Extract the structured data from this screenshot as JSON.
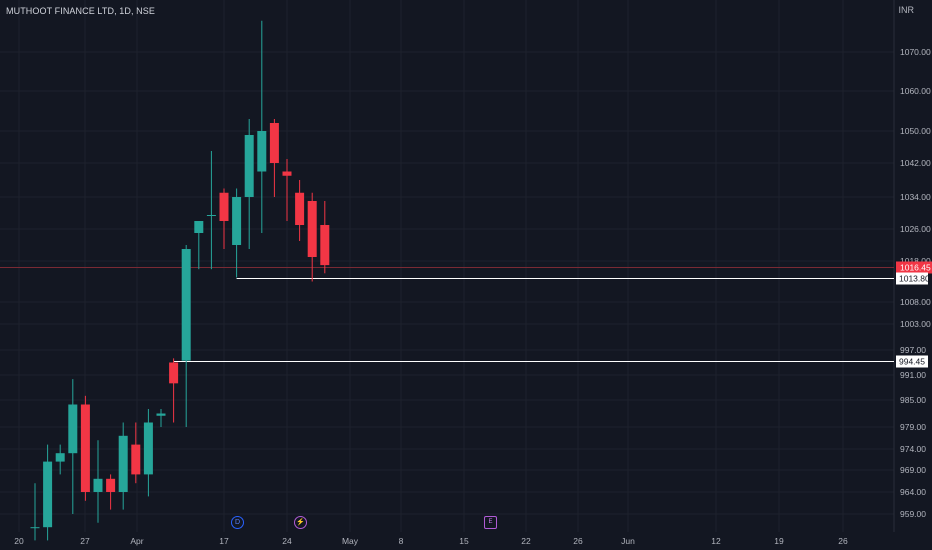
{
  "header": {
    "symbol_line": "MUTHOOT FINANCE LTD, 1D, NSE",
    "currency": "INR"
  },
  "events": {
    "dividend_label": "D",
    "split_label": "⚡",
    "earnings_label": "E"
  },
  "colors": {
    "background": "#131722",
    "up": "#26a69a",
    "down": "#f23645",
    "grid": "#1e222d",
    "axis_text": "#b2b5be",
    "last_price_line": "#7a2a34",
    "level_line": "#ffffff"
  },
  "chart_data": {
    "type": "candlestick",
    "title": "MUTHOOT FINANCE LTD, 1D, NSE",
    "currency": "INR",
    "y_tick_labels": [
      "1070.00",
      "1060.00",
      "1050.00",
      "1042.00",
      "1034.00",
      "1026.00",
      "1018.00",
      "1008.00",
      "1003.00",
      "997.00",
      "991.00",
      "985.00",
      "979.00",
      "974.00",
      "969.00",
      "964.00",
      "959.00"
    ],
    "x_tick_labels": [
      "20",
      "27",
      "Apr",
      "17",
      "24",
      "May",
      "8",
      "15",
      "22",
      "26",
      "Jun",
      "12",
      "19",
      "26"
    ],
    "candles": [
      {
        "o": 956,
        "h": 966,
        "l": 953,
        "c": 956
      },
      {
        "o": 956,
        "h": 975,
        "l": 953,
        "c": 971
      },
      {
        "o": 971,
        "h": 975,
        "l": 968,
        "c": 973
      },
      {
        "o": 973,
        "h": 990,
        "l": 959,
        "c": 984
      },
      {
        "o": 984,
        "h": 986,
        "l": 962,
        "c": 964
      },
      {
        "o": 964,
        "h": 976,
        "l": 957,
        "c": 967
      },
      {
        "o": 967,
        "h": 968,
        "l": 960,
        "c": 964
      },
      {
        "o": 964,
        "h": 980,
        "l": 960,
        "c": 977
      },
      {
        "o": 975,
        "h": 980,
        "l": 966,
        "c": 968
      },
      {
        "o": 968,
        "h": 983,
        "l": 963,
        "c": 980
      },
      {
        "o": 981.5,
        "h": 983,
        "l": 979,
        "c": 982
      },
      {
        "o": 994,
        "h": 995,
        "l": 980,
        "c": 989
      },
      {
        "o": 994.45,
        "h": 1022,
        "l": 979,
        "c": 1021
      },
      {
        "o": 1025,
        "h": 1028,
        "l": 1016,
        "c": 1028
      },
      {
        "o": 1029.5,
        "h": 1045,
        "l": 1016,
        "c": 1029.5
      },
      {
        "o": 1035,
        "h": 1036,
        "l": 1021,
        "c": 1028
      },
      {
        "o": 1022,
        "h": 1036,
        "l": 1014,
        "c": 1034
      },
      {
        "o": 1034,
        "h": 1053,
        "l": 1021,
        "c": 1049
      },
      {
        "o": 1040,
        "h": 1078,
        "l": 1025,
        "c": 1050
      },
      {
        "o": 1052,
        "h": 1053,
        "l": 1034,
        "c": 1042
      },
      {
        "o": 1040,
        "h": 1043,
        "l": 1028,
        "c": 1039
      },
      {
        "o": 1035,
        "h": 1038,
        "l": 1023,
        "c": 1027
      },
      {
        "o": 1033,
        "h": 1035,
        "l": 1013,
        "c": 1019
      },
      {
        "o": 1027,
        "h": 1033,
        "l": 1015,
        "c": 1017
      }
    ],
    "price_labels": [
      {
        "value": 1016.45,
        "text": "1016.45",
        "kind": "last"
      },
      {
        "value": 1013.8,
        "text": "1013.80",
        "kind": "level"
      },
      {
        "value": 994.45,
        "text": "994.45",
        "kind": "level"
      }
    ]
  }
}
